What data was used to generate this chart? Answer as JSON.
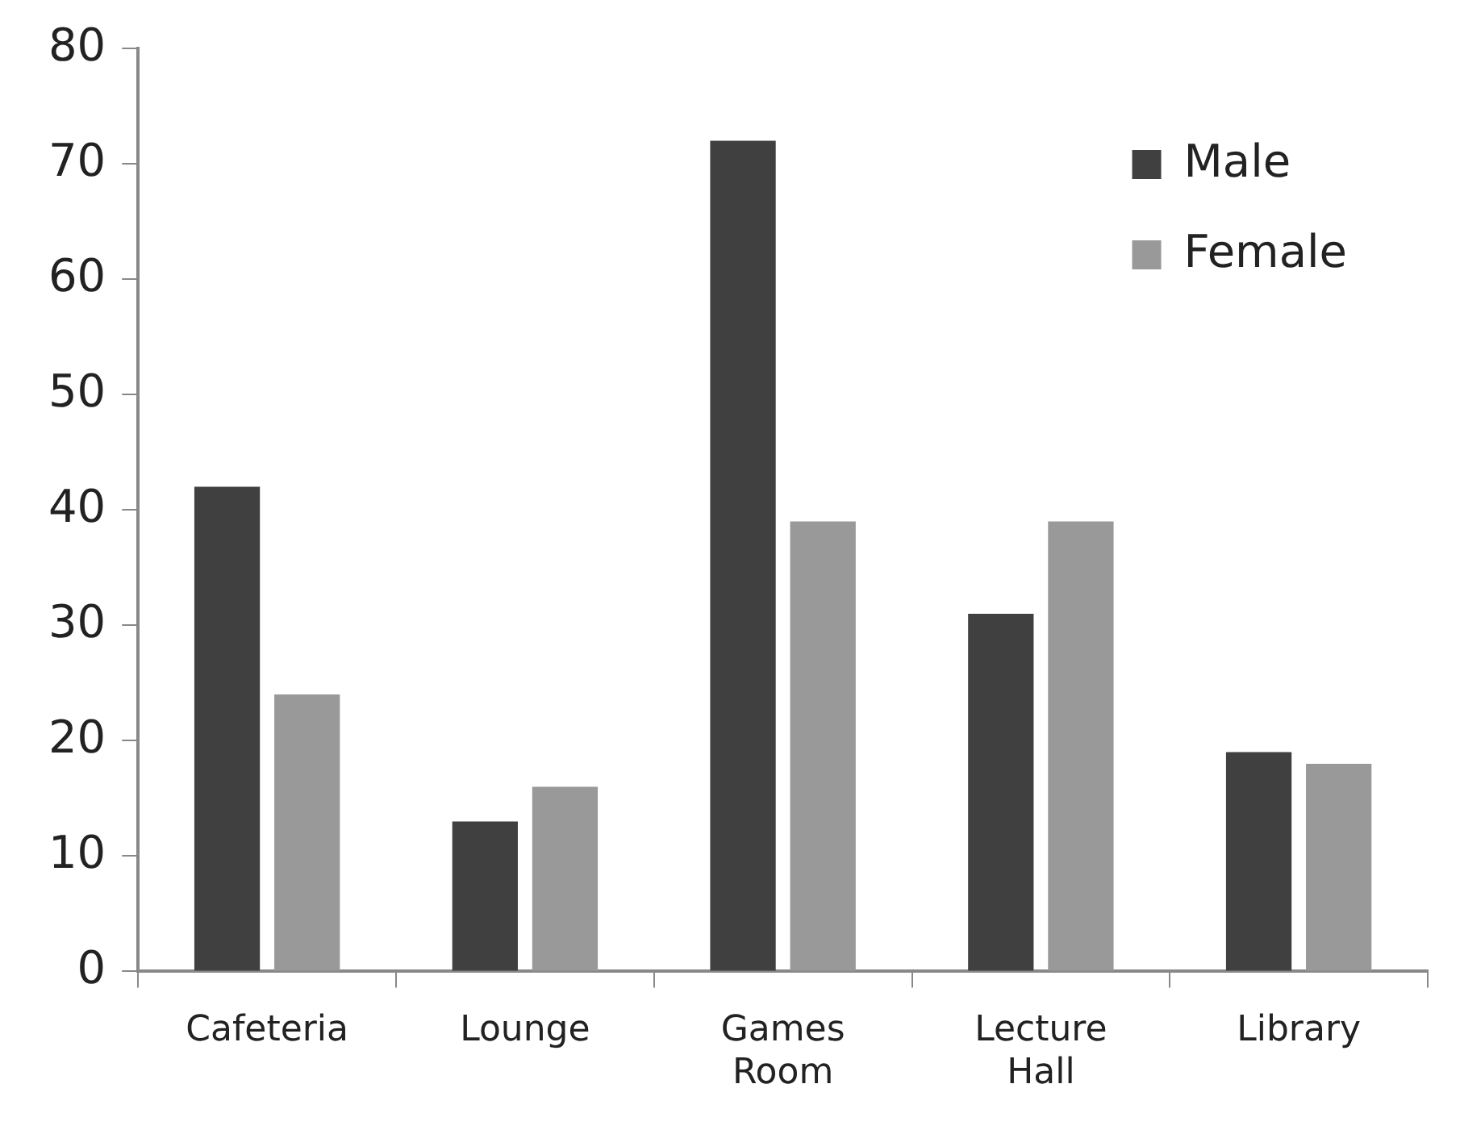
{
  "chart_data": {
    "type": "bar",
    "categories": [
      "Cafeteria",
      "Lounge",
      "Games Room",
      "Lecture Hall",
      "Library"
    ],
    "series": [
      {
        "name": "Male",
        "color": "#404040",
        "values": [
          42,
          13,
          72,
          31,
          19
        ]
      },
      {
        "name": "Female",
        "color": "#999999",
        "values": [
          24,
          16,
          39,
          39,
          18
        ]
      }
    ],
    "ylim": [
      0,
      80
    ],
    "yticks": [
      0,
      10,
      20,
      30,
      40,
      50,
      60,
      70,
      80
    ],
    "grid": false,
    "legend": "top right"
  }
}
